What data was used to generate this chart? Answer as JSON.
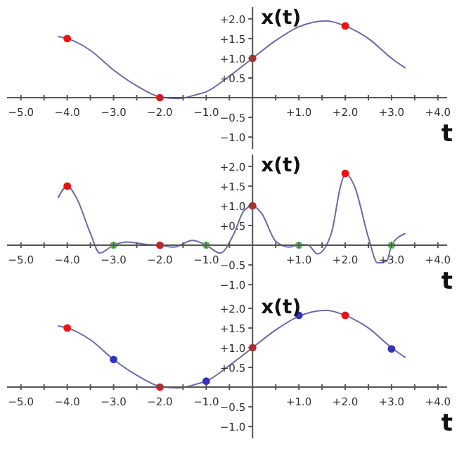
{
  "chart_data": [
    {
      "type": "line",
      "xlabel": "t",
      "ylabel": "x(t)",
      "xlim": [
        -5.3,
        4.2
      ],
      "ylim": [
        -1.3,
        2.3
      ],
      "xticks": [
        {
          "value": -5,
          "label": "−5.0"
        },
        {
          "value": -4.5,
          "label": null
        },
        {
          "value": -4,
          "label": "−4.0"
        },
        {
          "value": -3.5,
          "label": null
        },
        {
          "value": -3,
          "label": "−3.0"
        },
        {
          "value": -2.5,
          "label": null
        },
        {
          "value": -2,
          "label": "−2.0"
        },
        {
          "value": -1.5,
          "label": null
        },
        {
          "value": -1,
          "label": "−1.0"
        },
        {
          "value": -0.5,
          "label": null
        },
        {
          "value": 0.5,
          "label": null
        },
        {
          "value": 1,
          "label": "+1.0"
        },
        {
          "value": 1.5,
          "label": null
        },
        {
          "value": 2,
          "label": "+2.0"
        },
        {
          "value": 2.5,
          "label": null
        },
        {
          "value": 3,
          "label": "+3.0"
        },
        {
          "value": 3.5,
          "label": null
        },
        {
          "value": 4,
          "label": "+4.0"
        }
      ],
      "yticks": [
        {
          "value": -1,
          "label": "−1.0"
        },
        {
          "value": -0.5,
          "label": "−0.5"
        },
        {
          "value": 0.5,
          "label": "+0.5"
        },
        {
          "value": 1,
          "label": "+1.0"
        },
        {
          "value": 1.5,
          "label": "+1.5"
        },
        {
          "value": 2,
          "label": "+2.0"
        }
      ],
      "series": [
        {
          "color": "#6a6aa8",
          "x": [
            -4.2,
            -4,
            -3.5,
            -3,
            -2.5,
            -2,
            -1.6,
            -1.2,
            -1,
            -0.5,
            0,
            0.5,
            1,
            1.6,
            2,
            2.5,
            3,
            3.3
          ],
          "values": [
            1.55,
            1.5,
            1.2,
            0.7,
            0.3,
            0.02,
            -0.02,
            0.08,
            0.15,
            0.55,
            1.0,
            1.45,
            1.8,
            1.95,
            1.82,
            1.5,
            1.0,
            0.75
          ]
        },
        {
          "type": "scatter",
          "marker": "circle",
          "color": "#ee1111",
          "x": [
            -4,
            -2,
            0,
            2
          ],
          "values": [
            1.5,
            0,
            1.0,
            1.82
          ]
        }
      ]
    },
    {
      "type": "line",
      "xlabel": "t",
      "ylabel": "x(t)",
      "xlim": [
        -5.3,
        4.2
      ],
      "ylim": [
        -1.3,
        2.3
      ],
      "xticks": [
        {
          "value": -5,
          "label": "−5.0"
        },
        {
          "value": -4.5,
          "label": null
        },
        {
          "value": -4,
          "label": "−4.0"
        },
        {
          "value": -3.5,
          "label": null
        },
        {
          "value": -3,
          "label": "−3.0"
        },
        {
          "value": -2.5,
          "label": null
        },
        {
          "value": -2,
          "label": "−2.0"
        },
        {
          "value": -1.5,
          "label": null
        },
        {
          "value": -1,
          "label": "−1.0"
        },
        {
          "value": -0.5,
          "label": null
        },
        {
          "value": 0.5,
          "label": null
        },
        {
          "value": 1,
          "label": "+1.0"
        },
        {
          "value": 1.5,
          "label": null
        },
        {
          "value": 2,
          "label": "+2.0"
        },
        {
          "value": 2.5,
          "label": null
        },
        {
          "value": 3,
          "label": "+3.0"
        },
        {
          "value": 3.5,
          "label": null
        },
        {
          "value": 4,
          "label": "+4.0"
        }
      ],
      "yticks": [
        {
          "value": -1,
          "label": "−1.0"
        },
        {
          "value": -0.5,
          "label": "−0.5"
        },
        {
          "value": 0.5,
          "label": "+0.5"
        },
        {
          "value": 1,
          "label": "+1.0"
        },
        {
          "value": 1.5,
          "label": "+1.5"
        },
        {
          "value": 2,
          "label": "+2.0"
        }
      ],
      "series": [
        {
          "color": "#6a6aa8",
          "x": [
            -4.2,
            -4,
            -3.8,
            -3.5,
            -3.3,
            -3,
            -2.7,
            -2.3,
            -2,
            -1.7,
            -1.3,
            -1,
            -0.7,
            -0.4,
            -0.2,
            0,
            0.2,
            0.5,
            0.8,
            1,
            1.2,
            1.4,
            1.7,
            1.9,
            2,
            2.2,
            2.5,
            2.7,
            2.9,
            3,
            3.3
          ],
          "values": [
            1.2,
            1.5,
            1.2,
            0.3,
            -0.2,
            0,
            0.08,
            0.02,
            0,
            -0.05,
            0.12,
            0,
            -0.2,
            0.3,
            0.85,
            1.0,
            0.8,
            0.1,
            -0.05,
            0.02,
            0,
            -0.22,
            0.3,
            1.5,
            1.82,
            1.5,
            0.2,
            -0.45,
            -0.4,
            0,
            0.3
          ]
        },
        {
          "type": "scatter",
          "marker": "circle",
          "color": "#ee1111",
          "x": [
            -4,
            -2,
            0,
            2
          ],
          "values": [
            1.5,
            0,
            1.0,
            1.82
          ]
        },
        {
          "type": "scatter",
          "marker": "circle",
          "color": "#66bb66",
          "x": [
            -3,
            -1,
            1,
            3
          ],
          "values": [
            0,
            0,
            0,
            0
          ]
        }
      ]
    },
    {
      "type": "line",
      "xlabel": "t",
      "ylabel": "x(t)",
      "xlim": [
        -5.3,
        4.2
      ],
      "ylim": [
        -1.3,
        2.3
      ],
      "xticks": [
        {
          "value": -5,
          "label": "−5.0"
        },
        {
          "value": -4.5,
          "label": null
        },
        {
          "value": -4,
          "label": "−4.0"
        },
        {
          "value": -3.5,
          "label": null
        },
        {
          "value": -3,
          "label": "−3.0"
        },
        {
          "value": -2.5,
          "label": null
        },
        {
          "value": -2,
          "label": "−2.0"
        },
        {
          "value": -1.5,
          "label": null
        },
        {
          "value": -1,
          "label": "−1.0"
        },
        {
          "value": -0.5,
          "label": null
        },
        {
          "value": 0.5,
          "label": null
        },
        {
          "value": 1,
          "label": "+1.0"
        },
        {
          "value": 1.5,
          "label": null
        },
        {
          "value": 2,
          "label": "+2.0"
        },
        {
          "value": 2.5,
          "label": null
        },
        {
          "value": 3,
          "label": "+3.0"
        },
        {
          "value": 3.5,
          "label": null
        },
        {
          "value": 4,
          "label": "+4.0"
        }
      ],
      "yticks": [
        {
          "value": -1,
          "label": "−1.0"
        },
        {
          "value": -0.5,
          "label": "−0.5"
        },
        {
          "value": 0.5,
          "label": "+0.5"
        },
        {
          "value": 1,
          "label": "+1.0"
        },
        {
          "value": 1.5,
          "label": "+1.5"
        },
        {
          "value": 2,
          "label": "+2.0"
        }
      ],
      "series": [
        {
          "color": "#6a6aa8",
          "x": [
            -4.2,
            -4,
            -3.5,
            -3,
            -2.5,
            -2,
            -1.6,
            -1.2,
            -1,
            -0.5,
            0,
            0.5,
            1,
            1.6,
            2,
            2.5,
            3,
            3.3
          ],
          "values": [
            1.55,
            1.5,
            1.2,
            0.7,
            0.3,
            0.02,
            -0.02,
            0.08,
            0.15,
            0.55,
            1.0,
            1.45,
            1.8,
            1.95,
            1.82,
            1.5,
            1.0,
            0.75
          ]
        },
        {
          "type": "scatter",
          "marker": "circle",
          "color": "#ee1111",
          "x": [
            -4,
            -2,
            0,
            2
          ],
          "values": [
            1.5,
            0,
            1.0,
            1.82
          ]
        },
        {
          "type": "scatter",
          "marker": "circle",
          "color": "#3333bb",
          "x": [
            -3,
            -1,
            1,
            3
          ],
          "values": [
            0.7,
            0.15,
            1.82,
            0.97
          ]
        }
      ]
    }
  ]
}
